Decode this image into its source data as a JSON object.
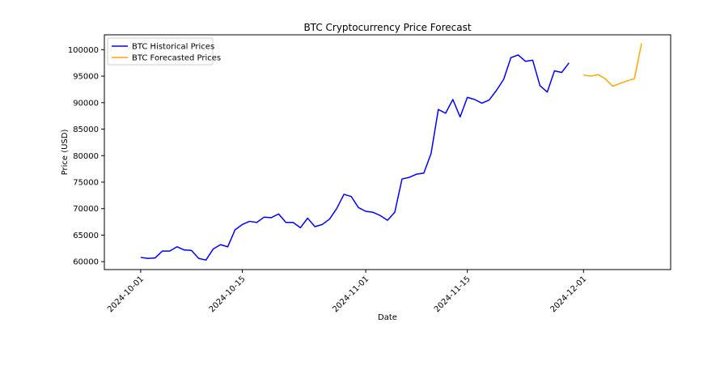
{
  "chart_data": {
    "type": "line",
    "title": "BTC Cryptocurrency Price Forecast",
    "xlabel": "Date",
    "ylabel": "Price (USD)",
    "xlim": [
      "2024-09-26",
      "2024-12-13"
    ],
    "ylim": [
      58500,
      102800
    ],
    "yticks": [
      60000,
      65000,
      70000,
      75000,
      80000,
      85000,
      90000,
      95000,
      100000
    ],
    "xticks": [
      "2024-10-01",
      "2024-10-15",
      "2024-11-01",
      "2024-11-15",
      "2024-12-01"
    ],
    "grid": false,
    "legend_position": "upper-left",
    "series": [
      {
        "name": "BTC Historical Prices",
        "color": "#0000ff",
        "x": [
          "2024-10-01",
          "2024-10-02",
          "2024-10-03",
          "2024-10-04",
          "2024-10-05",
          "2024-10-06",
          "2024-10-07",
          "2024-10-08",
          "2024-10-09",
          "2024-10-10",
          "2024-10-11",
          "2024-10-12",
          "2024-10-13",
          "2024-10-14",
          "2024-10-15",
          "2024-10-16",
          "2024-10-17",
          "2024-10-18",
          "2024-10-19",
          "2024-10-20",
          "2024-10-21",
          "2024-10-22",
          "2024-10-23",
          "2024-10-24",
          "2024-10-25",
          "2024-10-26",
          "2024-10-27",
          "2024-10-28",
          "2024-10-29",
          "2024-10-30",
          "2024-10-31",
          "2024-11-01",
          "2024-11-02",
          "2024-11-03",
          "2024-11-04",
          "2024-11-05",
          "2024-11-06",
          "2024-11-07",
          "2024-11-08",
          "2024-11-09",
          "2024-11-10",
          "2024-11-11",
          "2024-11-12",
          "2024-11-13",
          "2024-11-14",
          "2024-11-15",
          "2024-11-16",
          "2024-11-17",
          "2024-11-18",
          "2024-11-19",
          "2024-11-20",
          "2024-11-21",
          "2024-11-22",
          "2024-11-23",
          "2024-11-24",
          "2024-11-25",
          "2024-11-26",
          "2024-11-27",
          "2024-11-28",
          "2024-11-29"
        ],
        "values": [
          60800,
          60600,
          60700,
          62000,
          62000,
          62800,
          62200,
          62100,
          60600,
          60300,
          62400,
          63200,
          62800,
          66000,
          67000,
          67600,
          67400,
          68400,
          68300,
          69000,
          67400,
          67400,
          66400,
          68200,
          66600,
          67000,
          68000,
          70000,
          72700,
          72300,
          70200,
          69500,
          69300,
          68700,
          67800,
          69300,
          75600,
          75900,
          76500,
          76700,
          80400,
          88700,
          88000,
          90600,
          87300,
          91000,
          90600,
          89900,
          90500,
          92300,
          94400,
          98500,
          99000,
          97800,
          98000,
          93200,
          92000,
          96000,
          95700,
          97500
        ]
      },
      {
        "name": "BTC Forecasted Prices",
        "color": "#ffa500",
        "x": [
          "2024-12-01",
          "2024-12-02",
          "2024-12-03",
          "2024-12-04",
          "2024-12-05",
          "2024-12-06",
          "2024-12-07",
          "2024-12-08",
          "2024-12-09"
        ],
        "values": [
          95200,
          95000,
          95300,
          94500,
          93100,
          93600,
          94100,
          94500,
          101200
        ]
      }
    ]
  }
}
